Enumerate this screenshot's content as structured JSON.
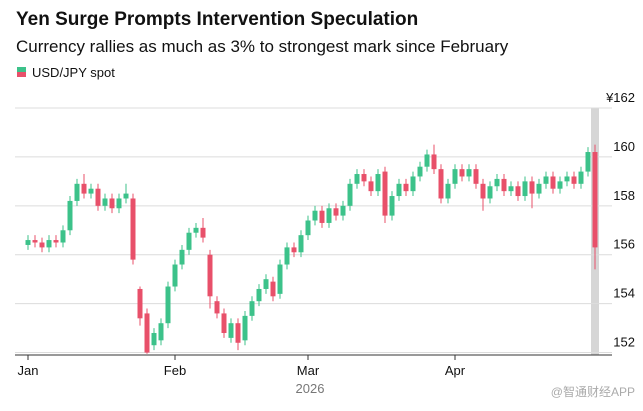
{
  "chart_data": {
    "type": "candlestick",
    "title": "Yen Surge Prompts Intervention Speculation",
    "subtitle": "Currency rallies as much as 3% to strongest mark since February",
    "x_label": "2026",
    "watermark": "@智通财经APP",
    "categories": [
      "Jan",
      null,
      null,
      null,
      null,
      null,
      null,
      null,
      null,
      null,
      null,
      null,
      null,
      null,
      null,
      null,
      null,
      null,
      null,
      null,
      null,
      "Feb",
      null,
      null,
      null,
      null,
      null,
      null,
      null,
      null,
      null,
      null,
      null,
      null,
      null,
      null,
      null,
      null,
      null,
      null,
      "Mar",
      null,
      null,
      null,
      null,
      null,
      null,
      null,
      null,
      null,
      null,
      null,
      null,
      null,
      null,
      null,
      null,
      null,
      null,
      null,
      null,
      "Apr",
      null,
      null,
      null,
      null,
      null,
      null,
      null,
      null,
      null,
      null,
      null,
      null,
      null,
      null,
      null,
      null,
      null,
      null,
      null,
      null
    ],
    "series": [
      {
        "name": "USD/JPY spot",
        "up_color": "#3cc28a",
        "down_color": "#e8506a",
        "open": [
          156.4,
          156.6,
          156.5,
          156.3,
          156.6,
          156.5,
          157.0,
          158.2,
          158.9,
          158.5,
          158.7,
          158.0,
          158.3,
          157.9,
          158.3,
          158.3,
          154.6,
          153.6,
          152.3,
          152.5,
          153.2,
          154.7,
          155.6,
          156.2,
          156.9,
          157.1,
          156.0,
          154.1,
          153.6,
          152.6,
          153.2,
          152.5,
          153.5,
          154.1,
          154.6,
          154.9,
          154.4,
          155.6,
          156.3,
          156.1,
          156.8,
          157.4,
          157.8,
          157.3,
          157.9,
          157.6,
          158.0,
          158.9,
          159.3,
          159.0,
          158.6,
          159.4,
          157.6,
          158.4,
          158.9,
          158.6,
          159.2,
          159.6,
          160.1,
          159.5,
          158.3,
          158.9,
          159.5,
          159.2,
          159.5,
          158.9,
          158.3,
          158.8,
          159.1,
          158.6,
          158.8,
          158.4,
          159.0,
          158.5,
          158.9,
          159.2,
          158.7,
          159.0,
          159.2,
          158.9,
          159.4,
          160.2
        ],
        "high": [
          156.8,
          156.8,
          156.7,
          156.8,
          156.8,
          157.2,
          158.4,
          159.1,
          159.3,
          158.9,
          158.9,
          158.5,
          158.5,
          158.5,
          158.9,
          158.5,
          154.7,
          153.8,
          153.0,
          153.4,
          154.9,
          155.8,
          156.4,
          157.1,
          157.3,
          157.5,
          156.2,
          154.3,
          153.8,
          153.4,
          153.4,
          153.7,
          154.3,
          154.8,
          155.2,
          155.1,
          155.8,
          156.5,
          156.5,
          157.0,
          157.6,
          158.0,
          158.0,
          158.1,
          158.1,
          158.2,
          159.1,
          159.5,
          159.5,
          159.2,
          159.5,
          159.6,
          158.6,
          159.1,
          159.1,
          159.4,
          159.8,
          160.3,
          160.5,
          159.7,
          159.1,
          159.7,
          159.7,
          159.7,
          159.7,
          159.1,
          159.0,
          159.3,
          159.3,
          159.0,
          159.0,
          159.2,
          159.2,
          159.1,
          159.4,
          159.4,
          159.2,
          159.4,
          159.4,
          159.6,
          160.4,
          160.5
        ],
        "low": [
          156.2,
          156.3,
          156.1,
          156.1,
          156.3,
          156.3,
          156.8,
          158.0,
          158.3,
          158.3,
          157.8,
          157.8,
          157.7,
          157.7,
          158.1,
          155.6,
          153.1,
          151.95,
          152.1,
          152.3,
          153.0,
          154.5,
          155.4,
          156.0,
          156.7,
          156.5,
          153.8,
          153.4,
          152.6,
          152.4,
          152.1,
          152.3,
          153.3,
          153.9,
          154.4,
          154.1,
          154.2,
          155.4,
          155.9,
          155.9,
          156.6,
          157.2,
          157.1,
          157.1,
          157.4,
          157.4,
          157.8,
          158.7,
          158.8,
          158.4,
          158.4,
          157.3,
          157.4,
          158.2,
          158.4,
          158.4,
          159.0,
          159.4,
          159.3,
          158.1,
          158.1,
          158.7,
          159.0,
          159.0,
          158.7,
          157.8,
          158.1,
          158.6,
          158.4,
          158.4,
          158.2,
          158.2,
          157.9,
          158.3,
          158.7,
          158.5,
          158.5,
          158.8,
          158.7,
          158.7,
          159.2,
          155.4
        ],
        "close": [
          156.6,
          156.5,
          156.3,
          156.6,
          156.5,
          157.0,
          158.2,
          158.9,
          158.5,
          158.7,
          158.0,
          158.3,
          157.9,
          158.3,
          158.5,
          155.8,
          153.4,
          152.0,
          152.8,
          153.2,
          154.7,
          155.6,
          156.2,
          156.9,
          157.1,
          156.7,
          154.3,
          153.6,
          152.8,
          153.2,
          152.4,
          153.5,
          154.1,
          154.6,
          155.0,
          154.3,
          155.6,
          156.3,
          156.1,
          156.8,
          157.4,
          157.8,
          157.3,
          157.9,
          157.6,
          158.0,
          158.9,
          159.3,
          159.0,
          158.6,
          159.3,
          157.6,
          158.4,
          158.9,
          158.6,
          159.2,
          159.6,
          160.1,
          159.5,
          158.3,
          158.9,
          159.5,
          159.2,
          159.5,
          158.9,
          158.3,
          158.8,
          159.1,
          158.6,
          158.8,
          158.4,
          159.0,
          158.5,
          158.9,
          159.2,
          158.7,
          159.0,
          159.2,
          158.9,
          159.4,
          160.2,
          156.3
        ]
      }
    ],
    "ylim": [
      151.9,
      162
    ],
    "yticks": [
      152,
      154,
      156,
      158,
      160,
      {
        "value": 162,
        "label": "¥162"
      }
    ],
    "grid": true
  }
}
